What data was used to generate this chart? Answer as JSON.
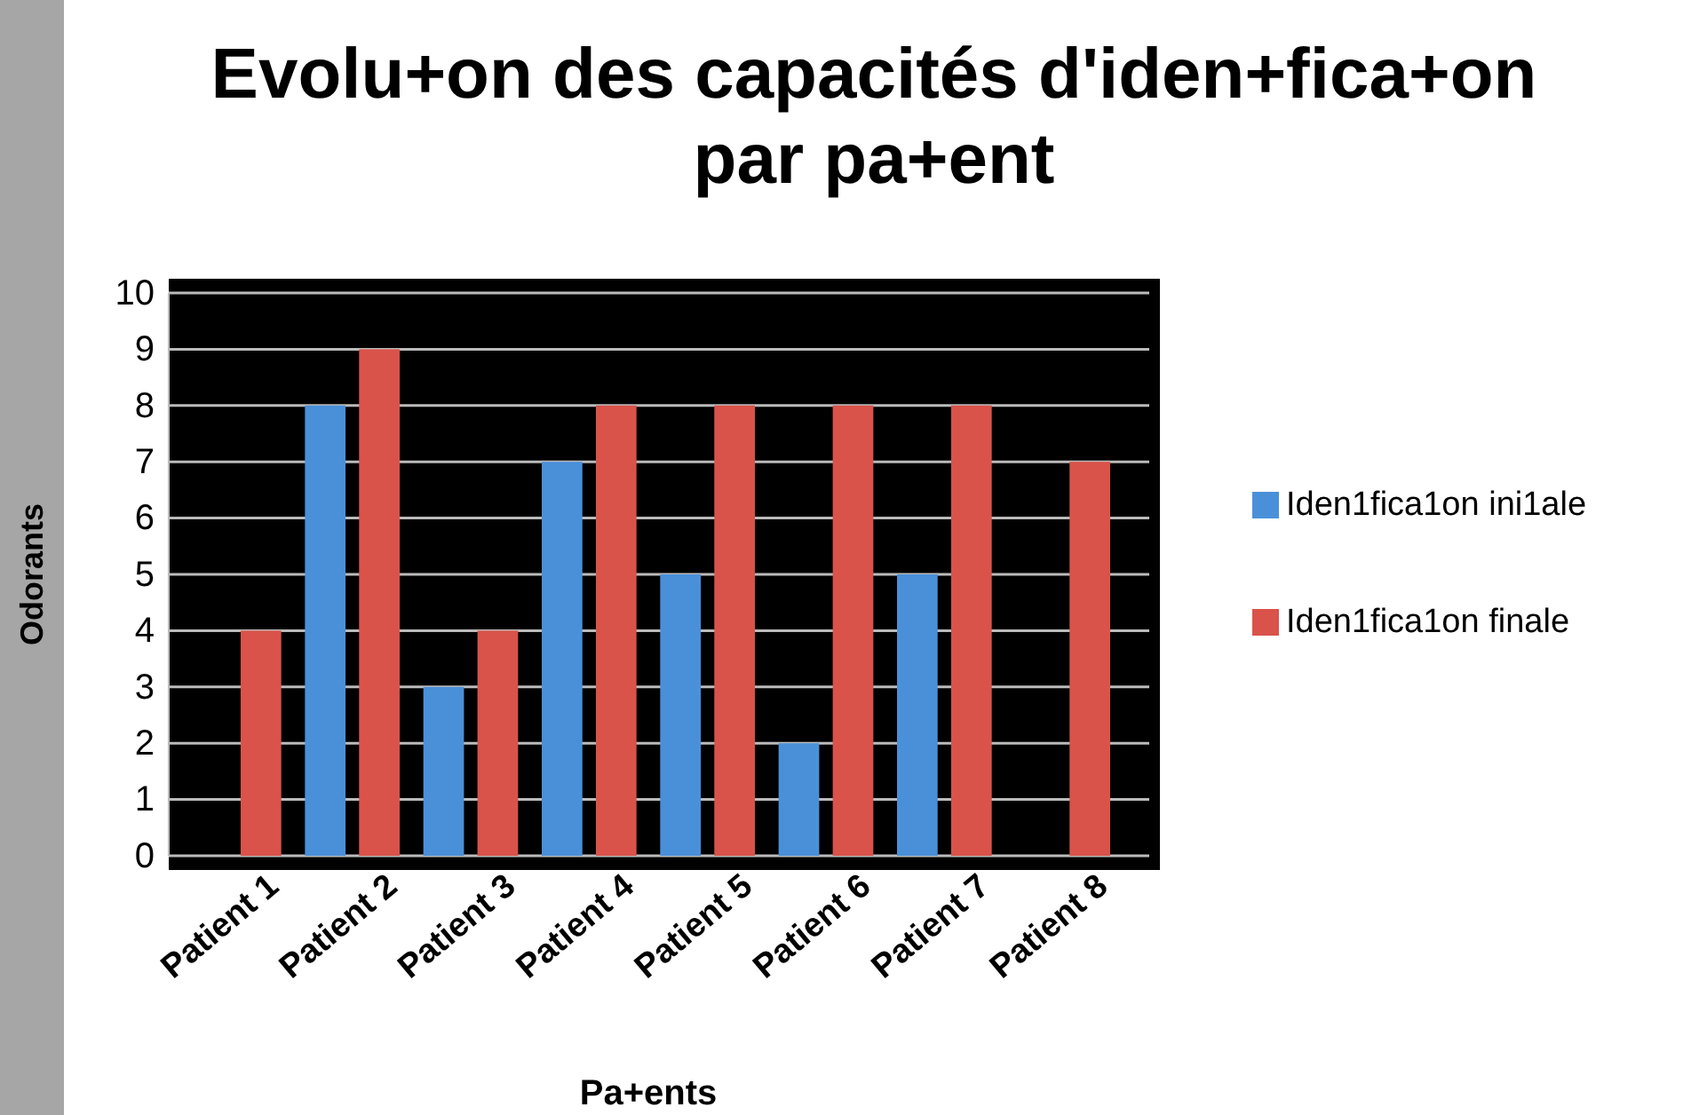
{
  "chart_data": {
    "type": "bar",
    "title": "Evolu+on des capacités d'iden+fica+on par pa+ent",
    "xlabel": "Pa+ents",
    "ylabel": "Odorants",
    "categories": [
      "Patient 1",
      "Patient 2",
      "Patient 3",
      "Patient 4",
      "Patient 5",
      "Patient 6",
      "Patient 7",
      "Patient 8"
    ],
    "series": [
      {
        "name": "Iden1fica1on ini1ale",
        "color": "#4a90d9",
        "values": [
          0,
          8,
          3,
          7,
          5,
          2,
          5,
          0
        ]
      },
      {
        "name": "Iden1fica1on finale",
        "color": "#d9534a",
        "values": [
          4,
          9,
          4,
          8,
          8,
          8,
          8,
          7
        ]
      }
    ],
    "ylim": [
      0,
      10
    ],
    "yticks": [
      0,
      1,
      2,
      3,
      4,
      5,
      6,
      7,
      8,
      9,
      10
    ],
    "grid": "y",
    "legend": "right"
  }
}
